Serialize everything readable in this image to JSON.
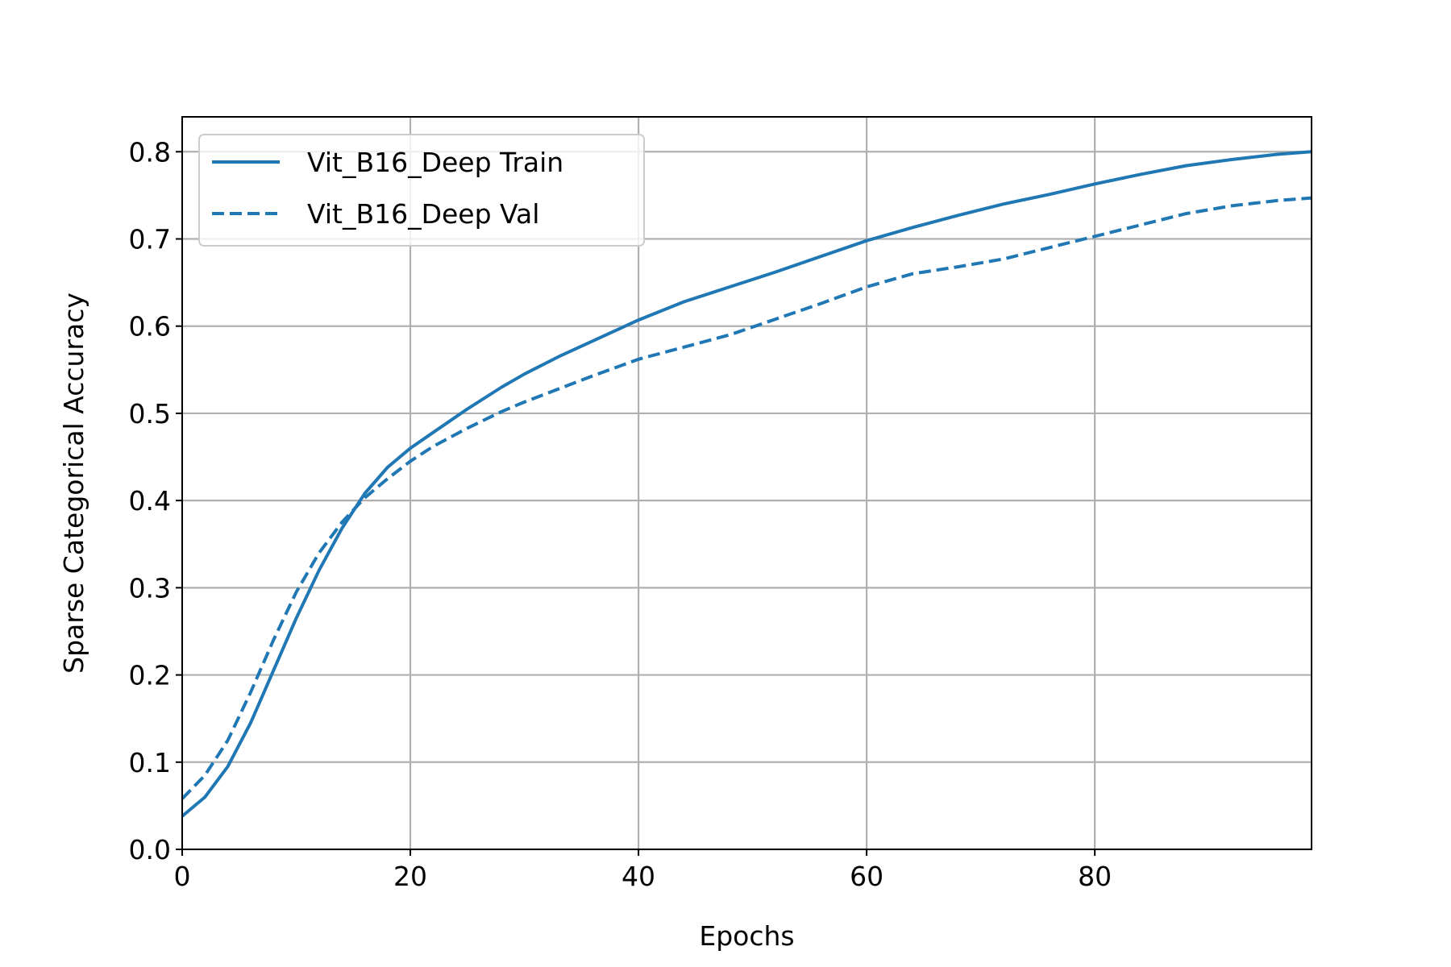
{
  "chart_data": {
    "type": "line",
    "title": "",
    "xlabel": "Epochs",
    "ylabel": "Sparse Categorical Accuracy",
    "xlim": [
      0,
      99
    ],
    "ylim": [
      0,
      0.84
    ],
    "x_ticks": [
      0,
      20,
      40,
      60,
      80
    ],
    "x_tick_labels": [
      "0",
      "20",
      "40",
      "60",
      "80"
    ],
    "y_ticks": [
      0.0,
      0.1,
      0.2,
      0.3,
      0.4,
      0.5,
      0.6,
      0.7,
      0.8
    ],
    "y_tick_labels": [
      "0.0",
      "0.1",
      "0.2",
      "0.3",
      "0.4",
      "0.5",
      "0.6",
      "0.7",
      "0.8"
    ],
    "grid": true,
    "legend_position": "upper-left",
    "series_color": "#1f77b4",
    "series": [
      {
        "name": "Vit_B16_Deep Train",
        "style": "solid",
        "x": [
          0,
          2,
          4,
          6,
          8,
          10,
          12,
          14,
          16,
          18,
          20,
          22,
          25,
          28,
          30,
          33,
          36,
          40,
          44,
          48,
          52,
          56,
          60,
          64,
          68,
          72,
          76,
          80,
          84,
          88,
          92,
          96,
          99
        ],
        "y": [
          0.038,
          0.06,
          0.095,
          0.145,
          0.205,
          0.265,
          0.32,
          0.368,
          0.408,
          0.438,
          0.46,
          0.478,
          0.505,
          0.53,
          0.545,
          0.565,
          0.583,
          0.607,
          0.628,
          0.645,
          0.662,
          0.68,
          0.698,
          0.713,
          0.727,
          0.74,
          0.751,
          0.763,
          0.774,
          0.784,
          0.791,
          0.797,
          0.8
        ]
      },
      {
        "name": "Vit_B16_Deep Val",
        "style": "dashed",
        "x": [
          0,
          2,
          4,
          6,
          8,
          10,
          12,
          14,
          16,
          18,
          20,
          22,
          25,
          28,
          30,
          33,
          36,
          40,
          44,
          48,
          52,
          56,
          60,
          64,
          68,
          72,
          76,
          80,
          84,
          88,
          92,
          96,
          99
        ],
        "y": [
          0.058,
          0.085,
          0.125,
          0.18,
          0.24,
          0.295,
          0.34,
          0.375,
          0.403,
          0.425,
          0.445,
          0.462,
          0.483,
          0.502,
          0.513,
          0.528,
          0.543,
          0.562,
          0.576,
          0.59,
          0.608,
          0.626,
          0.645,
          0.66,
          0.668,
          0.677,
          0.69,
          0.703,
          0.716,
          0.729,
          0.738,
          0.744,
          0.747
        ]
      }
    ]
  }
}
